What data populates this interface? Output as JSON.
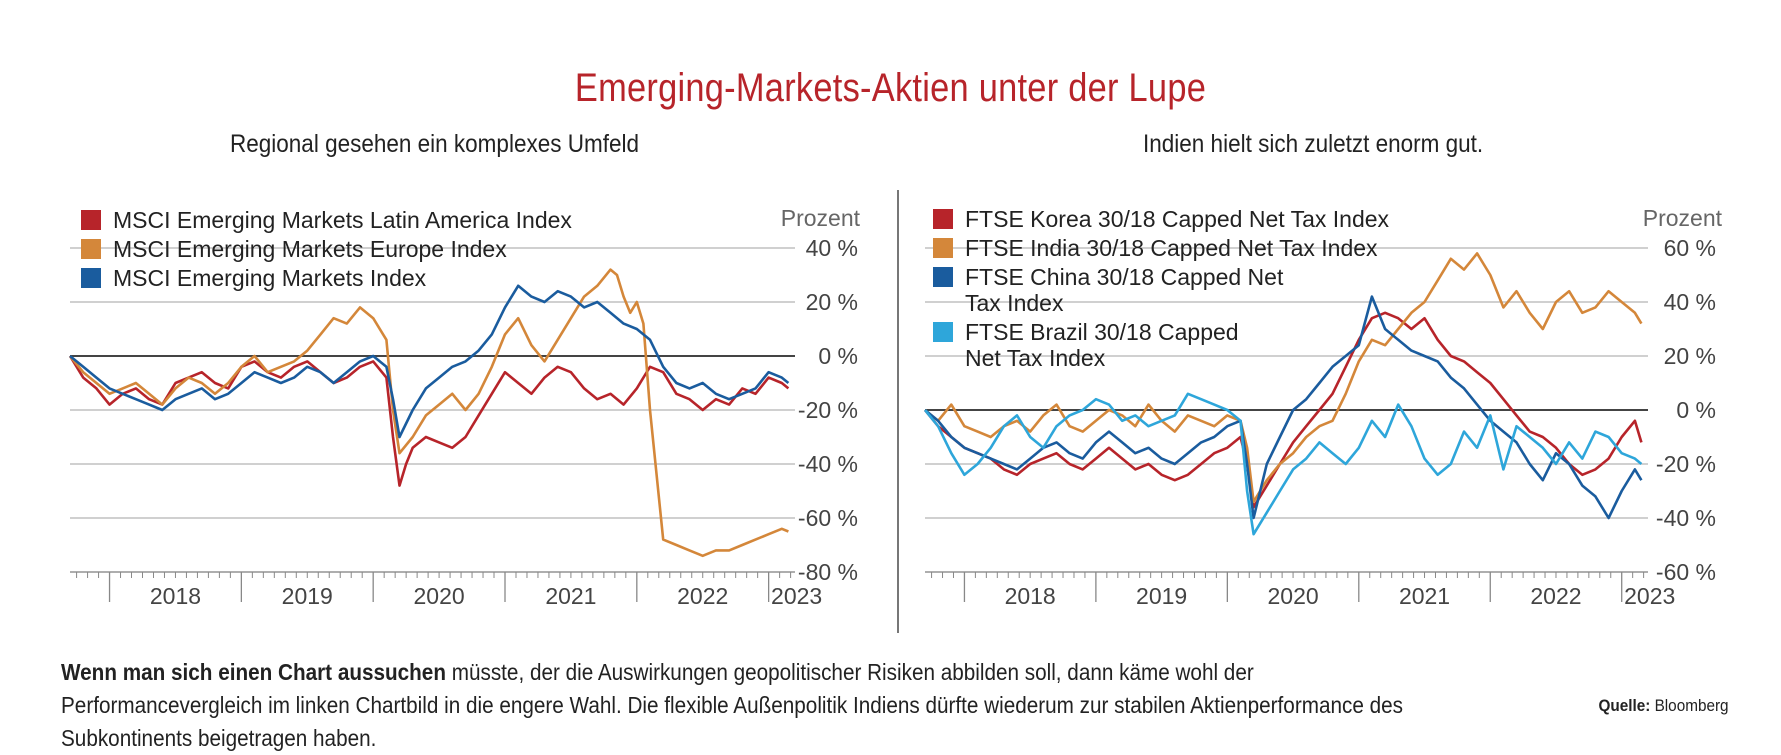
{
  "title": "Emerging-Markets-Aktien unter der Lupe",
  "footer": {
    "bold": "Wenn man sich einen Chart aussuchen",
    "text": " müsste, der die Auswirkungen geopolitischer Risiken abbilden soll, dann käme wohl der Performancevergleich im linken Chartbild in die engere Wahl. Die flexible Außenpolitik Indiens dürfte wiederum zur stabilen Aktienperformance des Subkontinents beigetragen haben.",
    "source_label": "Quelle:",
    "source_value": "Bloomberg"
  },
  "chart_data": [
    {
      "type": "line",
      "title": "Regional gesehen ein komplexes Umfeld",
      "ylabel": "Prozent",
      "ylim": [
        -80,
        40
      ],
      "yticks": [
        40,
        20,
        0,
        -20,
        -40,
        -60,
        -80
      ],
      "ytick_labels": [
        "40 %",
        "20 %",
        "0 %",
        "-20 %",
        "-40 %",
        "-60 %",
        "-80 %"
      ],
      "xlim": [
        2017.7,
        2023.2
      ],
      "xticks": [
        2018,
        2019,
        2020,
        2021,
        2022,
        2023
      ],
      "xtick_labels": [
        "2018",
        "2019",
        "2020",
        "2021",
        "2022",
        "2023"
      ],
      "grid": true,
      "legend": "top-left",
      "series": [
        {
          "name": "MSCI Emerging Markets Latin America Index",
          "color": "#b7242a",
          "x": [
            2017.7,
            2017.8,
            2017.9,
            2018.0,
            2018.1,
            2018.2,
            2018.3,
            2018.4,
            2018.5,
            2018.6,
            2018.7,
            2018.8,
            2018.9,
            2019.0,
            2019.1,
            2019.2,
            2019.3,
            2019.4,
            2019.5,
            2019.6,
            2019.7,
            2019.8,
            2019.9,
            2020.0,
            2020.1,
            2020.15,
            2020.2,
            2020.25,
            2020.3,
            2020.4,
            2020.5,
            2020.6,
            2020.7,
            2020.8,
            2020.9,
            2021.0,
            2021.1,
            2021.2,
            2021.3,
            2021.4,
            2021.5,
            2021.6,
            2021.7,
            2021.8,
            2021.9,
            2022.0,
            2022.1,
            2022.2,
            2022.3,
            2022.4,
            2022.5,
            2022.6,
            2022.7,
            2022.8,
            2022.9,
            2023.0,
            2023.1,
            2023.15
          ],
          "y": [
            0,
            -8,
            -12,
            -18,
            -14,
            -12,
            -16,
            -18,
            -10,
            -8,
            -6,
            -10,
            -12,
            -4,
            -2,
            -6,
            -8,
            -4,
            -2,
            -6,
            -10,
            -8,
            -4,
            -2,
            -8,
            -30,
            -48,
            -40,
            -34,
            -30,
            -32,
            -34,
            -30,
            -22,
            -14,
            -6,
            -10,
            -14,
            -8,
            -4,
            -6,
            -12,
            -16,
            -14,
            -18,
            -12,
            -4,
            -6,
            -14,
            -16,
            -20,
            -16,
            -18,
            -12,
            -14,
            -8,
            -10,
            -12
          ]
        },
        {
          "name": "MSCI Emerging Markets Europe Index",
          "color": "#d4873a",
          "x": [
            2017.7,
            2017.8,
            2017.9,
            2018.0,
            2018.1,
            2018.2,
            2018.3,
            2018.4,
            2018.5,
            2018.6,
            2018.7,
            2018.8,
            2018.9,
            2019.0,
            2019.1,
            2019.2,
            2019.3,
            2019.4,
            2019.5,
            2019.6,
            2019.7,
            2019.8,
            2019.9,
            2020.0,
            2020.1,
            2020.15,
            2020.2,
            2020.3,
            2020.4,
            2020.5,
            2020.6,
            2020.7,
            2020.8,
            2020.9,
            2021.0,
            2021.1,
            2021.2,
            2021.3,
            2021.4,
            2021.5,
            2021.6,
            2021.7,
            2021.8,
            2021.85,
            2021.9,
            2021.95,
            2022.0,
            2022.05,
            2022.1,
            2022.2,
            2022.3,
            2022.4,
            2022.5,
            2022.6,
            2022.7,
            2022.8,
            2022.9,
            2023.0,
            2023.1,
            2023.15
          ],
          "y": [
            0,
            -6,
            -10,
            -14,
            -12,
            -10,
            -14,
            -18,
            -12,
            -8,
            -10,
            -14,
            -10,
            -4,
            0,
            -6,
            -4,
            -2,
            2,
            8,
            14,
            12,
            18,
            14,
            6,
            -20,
            -36,
            -30,
            -22,
            -18,
            -14,
            -20,
            -14,
            -4,
            8,
            14,
            4,
            -2,
            6,
            14,
            22,
            26,
            32,
            30,
            22,
            16,
            20,
            12,
            -20,
            -68,
            -70,
            -72,
            -74,
            -72,
            -72,
            -70,
            -68,
            -66,
            -64,
            -65
          ]
        },
        {
          "name": "MSCI Emerging Markets Index",
          "color": "#1a5c9e",
          "x": [
            2017.7,
            2017.8,
            2017.9,
            2018.0,
            2018.1,
            2018.2,
            2018.3,
            2018.4,
            2018.5,
            2018.6,
            2018.7,
            2018.8,
            2018.9,
            2019.0,
            2019.1,
            2019.2,
            2019.3,
            2019.4,
            2019.5,
            2019.6,
            2019.7,
            2019.8,
            2019.9,
            2020.0,
            2020.1,
            2020.15,
            2020.2,
            2020.3,
            2020.4,
            2020.5,
            2020.6,
            2020.7,
            2020.8,
            2020.9,
            2021.0,
            2021.1,
            2021.2,
            2021.3,
            2021.4,
            2021.5,
            2021.6,
            2021.7,
            2021.8,
            2021.9,
            2022.0,
            2022.1,
            2022.2,
            2022.3,
            2022.4,
            2022.5,
            2022.6,
            2022.7,
            2022.8,
            2022.9,
            2023.0,
            2023.1,
            2023.15
          ],
          "y": [
            0,
            -4,
            -8,
            -12,
            -14,
            -16,
            -18,
            -20,
            -16,
            -14,
            -12,
            -16,
            -14,
            -10,
            -6,
            -8,
            -10,
            -8,
            -4,
            -6,
            -10,
            -6,
            -2,
            0,
            -4,
            -16,
            -30,
            -20,
            -12,
            -8,
            -4,
            -2,
            2,
            8,
            18,
            26,
            22,
            20,
            24,
            22,
            18,
            20,
            16,
            12,
            10,
            6,
            -4,
            -10,
            -12,
            -10,
            -14,
            -16,
            -14,
            -12,
            -6,
            -8,
            -10
          ]
        }
      ]
    },
    {
      "type": "line",
      "title": "Indien hielt sich zuletzt enorm gut.",
      "ylabel": "Prozent",
      "ylim": [
        -60,
        60
      ],
      "yticks": [
        60,
        40,
        20,
        0,
        -20,
        -40,
        -60
      ],
      "ytick_labels": [
        "60 %",
        "40 %",
        "20 %",
        "0 %",
        "-20 %",
        "-40 %",
        "-60 %"
      ],
      "xlim": [
        2017.7,
        2023.2
      ],
      "xticks": [
        2018,
        2019,
        2020,
        2021,
        2022,
        2023
      ],
      "xtick_labels": [
        "2018",
        "2019",
        "2020",
        "2021",
        "2022",
        "2023"
      ],
      "grid": true,
      "legend": "top-left",
      "series": [
        {
          "name": "FTSE Korea 30/18 Capped Net Tax Index",
          "color": "#b7242a",
          "x": [
            2017.7,
            2017.8,
            2017.9,
            2018.0,
            2018.1,
            2018.2,
            2018.3,
            2018.4,
            2018.5,
            2018.6,
            2018.7,
            2018.8,
            2018.9,
            2019.0,
            2019.1,
            2019.2,
            2019.3,
            2019.4,
            2019.5,
            2019.6,
            2019.7,
            2019.8,
            2019.9,
            2020.0,
            2020.1,
            2020.15,
            2020.2,
            2020.3,
            2020.4,
            2020.5,
            2020.6,
            2020.7,
            2020.8,
            2020.9,
            2021.0,
            2021.1,
            2021.2,
            2021.3,
            2021.4,
            2021.5,
            2021.6,
            2021.7,
            2021.8,
            2021.9,
            2022.0,
            2022.1,
            2022.2,
            2022.3,
            2022.4,
            2022.5,
            2022.6,
            2022.7,
            2022.8,
            2022.9,
            2023.0,
            2023.1,
            2023.15
          ],
          "y": [
            0,
            -6,
            -10,
            -14,
            -16,
            -18,
            -22,
            -24,
            -20,
            -18,
            -16,
            -20,
            -22,
            -18,
            -14,
            -18,
            -22,
            -20,
            -24,
            -26,
            -24,
            -20,
            -16,
            -14,
            -10,
            -20,
            -36,
            -28,
            -20,
            -12,
            -6,
            0,
            6,
            16,
            26,
            34,
            36,
            34,
            30,
            34,
            26,
            20,
            18,
            14,
            10,
            4,
            -2,
            -8,
            -10,
            -14,
            -20,
            -24,
            -22,
            -18,
            -10,
            -4,
            -12
          ]
        },
        {
          "name": "FTSE India 30/18 Capped Net Tax Index",
          "color": "#d4873a",
          "x": [
            2017.7,
            2017.8,
            2017.9,
            2018.0,
            2018.1,
            2018.2,
            2018.3,
            2018.4,
            2018.5,
            2018.6,
            2018.7,
            2018.8,
            2018.9,
            2019.0,
            2019.1,
            2019.2,
            2019.3,
            2019.4,
            2019.5,
            2019.6,
            2019.7,
            2019.8,
            2019.9,
            2020.0,
            2020.1,
            2020.15,
            2020.2,
            2020.3,
            2020.4,
            2020.5,
            2020.6,
            2020.7,
            2020.8,
            2020.9,
            2021.0,
            2021.1,
            2021.2,
            2021.3,
            2021.4,
            2021.5,
            2021.6,
            2021.7,
            2021.8,
            2021.9,
            2022.0,
            2022.1,
            2022.2,
            2022.3,
            2022.4,
            2022.5,
            2022.6,
            2022.7,
            2022.8,
            2022.9,
            2023.0,
            2023.1,
            2023.15
          ],
          "y": [
            0,
            -4,
            2,
            -6,
            -8,
            -10,
            -6,
            -4,
            -8,
            -2,
            2,
            -6,
            -8,
            -4,
            0,
            -2,
            -6,
            2,
            -4,
            -8,
            -2,
            -4,
            -6,
            -2,
            -4,
            -14,
            -34,
            -26,
            -20,
            -16,
            -10,
            -6,
            -4,
            6,
            18,
            26,
            24,
            30,
            36,
            40,
            48,
            56,
            52,
            58,
            50,
            38,
            44,
            36,
            30,
            40,
            44,
            36,
            38,
            44,
            40,
            36,
            32
          ]
        },
        {
          "name": "FTSE China 30/18 Capped Net Tax Index",
          "color": "#1a5c9e",
          "x": [
            2017.7,
            2017.8,
            2017.9,
            2018.0,
            2018.1,
            2018.2,
            2018.3,
            2018.4,
            2018.5,
            2018.6,
            2018.7,
            2018.8,
            2018.9,
            2019.0,
            2019.1,
            2019.2,
            2019.3,
            2019.4,
            2019.5,
            2019.6,
            2019.7,
            2019.8,
            2019.9,
            2020.0,
            2020.1,
            2020.15,
            2020.2,
            2020.3,
            2020.4,
            2020.5,
            2020.6,
            2020.7,
            2020.8,
            2020.9,
            2021.0,
            2021.1,
            2021.2,
            2021.3,
            2021.4,
            2021.5,
            2021.6,
            2021.7,
            2021.8,
            2021.9,
            2022.0,
            2022.1,
            2022.2,
            2022.3,
            2022.4,
            2022.5,
            2022.6,
            2022.7,
            2022.8,
            2022.9,
            2023.0,
            2023.1,
            2023.15
          ],
          "y": [
            0,
            -4,
            -10,
            -14,
            -16,
            -18,
            -20,
            -22,
            -18,
            -14,
            -12,
            -16,
            -18,
            -12,
            -8,
            -12,
            -16,
            -14,
            -18,
            -20,
            -16,
            -12,
            -10,
            -6,
            -4,
            -20,
            -40,
            -20,
            -10,
            0,
            4,
            10,
            16,
            20,
            24,
            42,
            30,
            26,
            22,
            20,
            18,
            12,
            8,
            2,
            -4,
            -8,
            -12,
            -20,
            -26,
            -16,
            -20,
            -28,
            -32,
            -40,
            -30,
            -22,
            -26
          ]
        },
        {
          "name": "FTSE Brazil 30/18 Capped Net Tax Index",
          "color": "#2ea6da",
          "x": [
            2017.7,
            2017.8,
            2017.9,
            2018.0,
            2018.1,
            2018.2,
            2018.3,
            2018.4,
            2018.5,
            2018.6,
            2018.7,
            2018.8,
            2018.9,
            2019.0,
            2019.1,
            2019.2,
            2019.3,
            2019.4,
            2019.5,
            2019.6,
            2019.7,
            2019.8,
            2019.9,
            2020.0,
            2020.1,
            2020.15,
            2020.2,
            2020.3,
            2020.4,
            2020.5,
            2020.6,
            2020.7,
            2020.8,
            2020.9,
            2021.0,
            2021.1,
            2021.2,
            2021.3,
            2021.4,
            2021.5,
            2021.6,
            2021.7,
            2021.8,
            2021.9,
            2022.0,
            2022.1,
            2022.2,
            2022.3,
            2022.4,
            2022.5,
            2022.6,
            2022.7,
            2022.8,
            2022.9,
            2023.0,
            2023.1,
            2023.15
          ],
          "y": [
            0,
            -6,
            -16,
            -24,
            -20,
            -14,
            -6,
            -2,
            -10,
            -14,
            -6,
            -2,
            0,
            4,
            2,
            -4,
            -2,
            -6,
            -4,
            -2,
            6,
            4,
            2,
            0,
            -4,
            -30,
            -46,
            -38,
            -30,
            -22,
            -18,
            -12,
            -16,
            -20,
            -14,
            -4,
            -10,
            2,
            -6,
            -18,
            -24,
            -20,
            -8,
            -14,
            -2,
            -22,
            -6,
            -10,
            -14,
            -20,
            -12,
            -18,
            -8,
            -10,
            -16,
            -18,
            -20
          ]
        }
      ]
    }
  ]
}
